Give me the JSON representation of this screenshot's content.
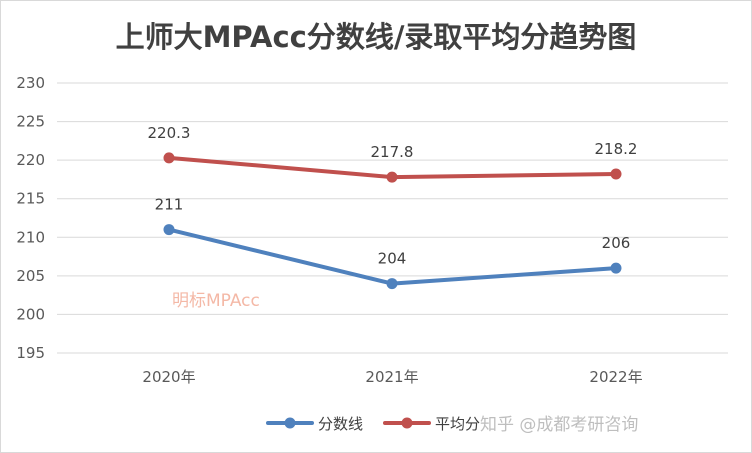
{
  "chart_data": {
    "type": "line",
    "title": "上师大MPAcc分数线/录取平均分趋势图",
    "categories": [
      "2020年",
      "2021年",
      "2022年"
    ],
    "ylim": [
      195,
      230
    ],
    "yticks": [
      "195",
      "200",
      "205",
      "210",
      "215",
      "220",
      "225",
      "230"
    ],
    "grid": true,
    "legend_position": "bottom",
    "series": [
      {
        "name": "分数线",
        "values": [
          211,
          204,
          206
        ],
        "labels": [
          "211",
          "204",
          "206"
        ],
        "color": "#4f81bd"
      },
      {
        "name": "平均分",
        "values": [
          220.3,
          217.8,
          218.2
        ],
        "labels": [
          "220.3",
          "217.8",
          "218.2"
        ],
        "color": "#c0504d"
      }
    ]
  },
  "watermarks": {
    "center": "明标MPAcc",
    "corner": "知乎 @成都考研咨询"
  }
}
